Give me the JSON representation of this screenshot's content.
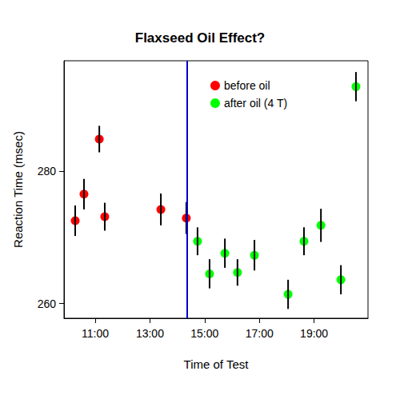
{
  "chart_data": {
    "type": "scatter",
    "title": "Flaxseed Oil Effect?",
    "x_label": "Time of Test",
    "y_label": "Reaction Time (msec)",
    "xlim": [
      9.86,
      20.97
    ],
    "xticks": [
      {
        "value": 11,
        "label": "11:00"
      },
      {
        "value": 13,
        "label": "13:00"
      },
      {
        "value": 15,
        "label": "15:00"
      },
      {
        "value": 17,
        "label": "17:00"
      },
      {
        "value": 19,
        "label": "19:00"
      }
    ],
    "ylim": [
      257.8,
      296.6
    ],
    "yticks": [
      260,
      280
    ],
    "grid": false,
    "legend": "top-right",
    "marker": "circle",
    "series": [
      {
        "name": "before oil",
        "color": "#ff0000",
        "x": [
          10.27,
          10.59,
          11.15,
          11.35,
          13.4,
          14.33
        ],
        "values": [
          272.5,
          276.5,
          284.8,
          273.1,
          274.2,
          272.9
        ],
        "errors": [
          2.3,
          2.3,
          2.0,
          2.1,
          2.4,
          2.4
        ]
      },
      {
        "name": "after oil (4 T)",
        "color": "#00ff00",
        "x": [
          14.74,
          15.18,
          15.74,
          16.2,
          16.82,
          18.05,
          18.63,
          19.25,
          19.98,
          20.53
        ],
        "values": [
          269.4,
          264.5,
          267.6,
          264.7,
          267.3,
          261.4,
          269.4,
          271.8,
          263.6,
          292.7
        ],
        "errors": [
          2.1,
          2.2,
          2.2,
          2.0,
          2.3,
          2.2,
          2.1,
          2.5,
          2.2,
          2.2
        ]
      }
    ],
    "vline": {
      "x": 14.36,
      "color": "#0000cd"
    }
  }
}
